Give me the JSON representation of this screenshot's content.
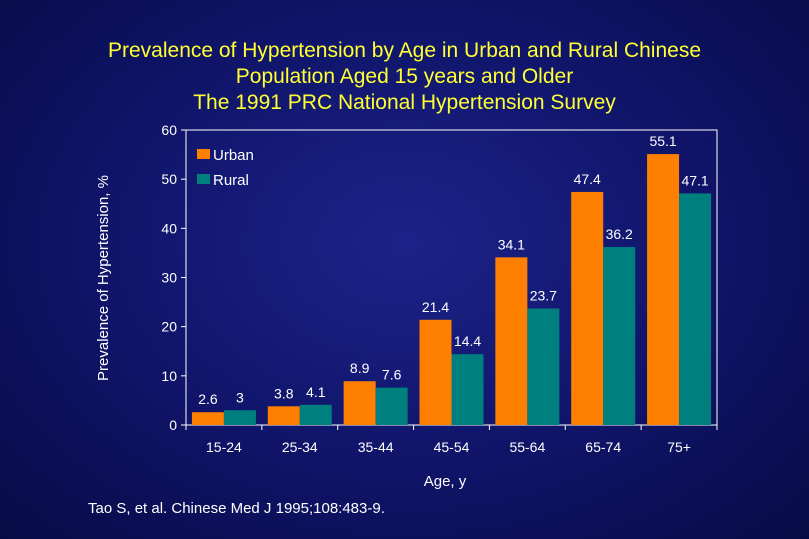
{
  "title_lines": [
    "Prevalence of Hypertension by Age in Urban and Rural Chinese",
    "Population Aged 15 years and Older",
    "The 1991 PRC National Hypertension Survey"
  ],
  "citation": "Tao S, et al. Chinese Med J 1995;108:483-9.",
  "colors": {
    "urban": "#ff8000",
    "rural": "#007f7f",
    "title": "#ffff33"
  },
  "chart_data": {
    "type": "bar",
    "title": "Prevalence of Hypertension by Age in Urban and Rural Chinese Population Aged 15 years and Older — The 1991 PRC National Hypertension Survey",
    "xlabel": "Age, y",
    "ylabel": "Prevalence of Hypertension, %",
    "ylim": [
      0,
      60
    ],
    "yticks": [
      0,
      10,
      20,
      30,
      40,
      50,
      60
    ],
    "categories": [
      "15-24",
      "25-34",
      "35-44",
      "45-54",
      "55-64",
      "65-74",
      "75+"
    ],
    "series": [
      {
        "name": "Urban",
        "values": [
          2.6,
          3.8,
          8.9,
          21.4,
          34.1,
          47.4,
          55.1
        ],
        "labels": [
          "2.6",
          "3.8",
          "8.9",
          "21.4",
          "34.1",
          "47.4",
          "55.1"
        ]
      },
      {
        "name": "Rural",
        "values": [
          3,
          4.1,
          7.6,
          14.4,
          23.7,
          36.2,
          47.1
        ],
        "labels": [
          "3",
          "4.1",
          "7.6",
          "14.4",
          "23.7",
          "36.2",
          "47.1"
        ]
      }
    ],
    "legend_position": "top-left"
  }
}
